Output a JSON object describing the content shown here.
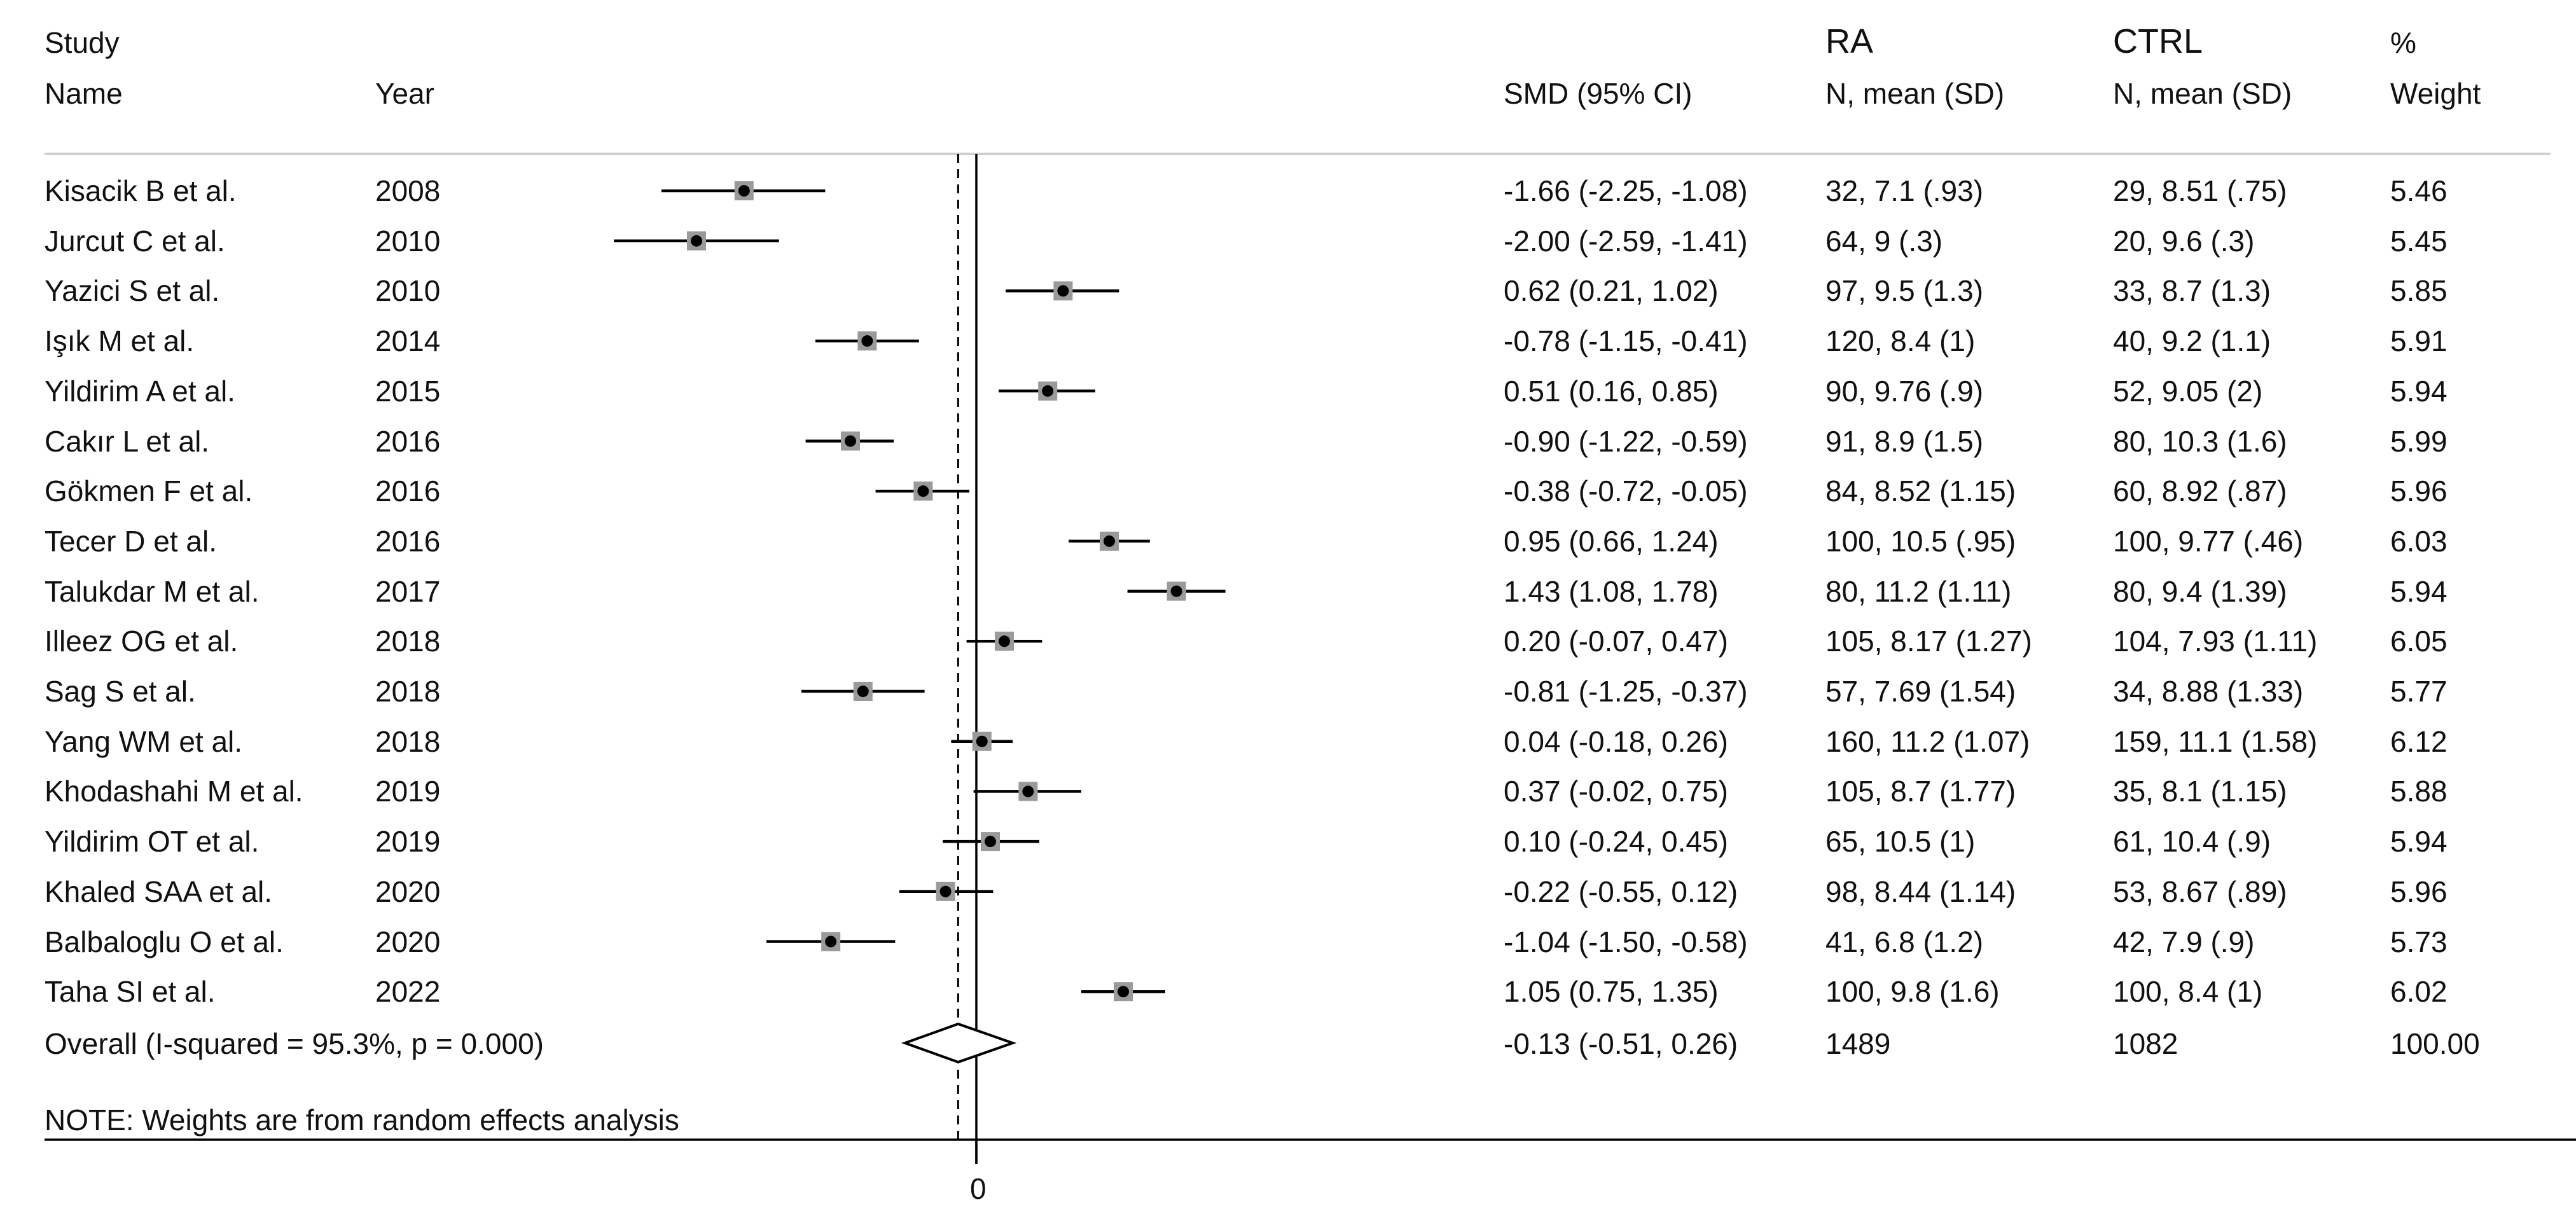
{
  "chart_data": {
    "type": "forest",
    "headers": {
      "study_line1": "Study",
      "study_line2": "Name",
      "year": "Year",
      "smd": "SMD (95% CI)",
      "ra_line1": "RA",
      "ra_line2": "N, mean (SD)",
      "ctrl_line1": "CTRL",
      "ctrl_line2": "N, mean (SD)",
      "weight_line1": "%",
      "weight_line2": "Weight"
    },
    "rows": [
      {
        "study": "Kisacik B et al.",
        "year": "2008",
        "smd": -1.66,
        "lo": -2.25,
        "hi": -1.08,
        "smd_text": "-1.66 (-2.25, -1.08)",
        "ra": "32, 7.1 (.93)",
        "ctrl": "29, 8.51 (.75)",
        "weight": "5.46"
      },
      {
        "study": "Jurcut C et al.",
        "year": "2010",
        "smd": -2.0,
        "lo": -2.59,
        "hi": -1.41,
        "smd_text": "-2.00 (-2.59, -1.41)",
        "ra": "64, 9 (.3)",
        "ctrl": "20, 9.6 (.3)",
        "weight": "5.45"
      },
      {
        "study": "Yazici S et al.",
        "year": "2010",
        "smd": 0.62,
        "lo": 0.21,
        "hi": 1.02,
        "smd_text": "0.62 (0.21, 1.02)",
        "ra": "97, 9.5 (1.3)",
        "ctrl": "33, 8.7 (1.3)",
        "weight": "5.85"
      },
      {
        "study": "Işık M et al.",
        "year": "2014",
        "smd": -0.78,
        "lo": -1.15,
        "hi": -0.41,
        "smd_text": "-0.78 (-1.15, -0.41)",
        "ra": "120, 8.4 (1)",
        "ctrl": "40, 9.2 (1.1)",
        "weight": "5.91"
      },
      {
        "study": "Yildirim A et al.",
        "year": "2015",
        "smd": 0.51,
        "lo": 0.16,
        "hi": 0.85,
        "smd_text": "0.51 (0.16, 0.85)",
        "ra": "90, 9.76 (.9)",
        "ctrl": "52, 9.05 (2)",
        "weight": "5.94"
      },
      {
        "study": "Cakır L et al.",
        "year": "2016",
        "smd": -0.9,
        "lo": -1.22,
        "hi": -0.59,
        "smd_text": "-0.90 (-1.22, -0.59)",
        "ra": "91, 8.9 (1.5)",
        "ctrl": "80, 10.3 (1.6)",
        "weight": "5.99"
      },
      {
        "study": "Gökmen F et al.",
        "year": "2016",
        "smd": -0.38,
        "lo": -0.72,
        "hi": -0.05,
        "smd_text": "-0.38 (-0.72, -0.05)",
        "ra": "84, 8.52 (1.15)",
        "ctrl": "60, 8.92 (.87)",
        "weight": "5.96"
      },
      {
        "study": "Tecer D et al.",
        "year": "2016",
        "smd": 0.95,
        "lo": 0.66,
        "hi": 1.24,
        "smd_text": "0.95 (0.66, 1.24)",
        "ra": "100, 10.5 (.95)",
        "ctrl": "100, 9.77 (.46)",
        "weight": "6.03"
      },
      {
        "study": "Talukdar M et al.",
        "year": "2017",
        "smd": 1.43,
        "lo": 1.08,
        "hi": 1.78,
        "smd_text": "1.43 (1.08, 1.78)",
        "ra": "80, 11.2 (1.11)",
        "ctrl": "80, 9.4 (1.39)",
        "weight": "5.94"
      },
      {
        "study": "Illeez OG et al.",
        "year": "2018",
        "smd": 0.2,
        "lo": -0.07,
        "hi": 0.47,
        "smd_text": "0.20 (-0.07, 0.47)",
        "ra": "105, 8.17 (1.27)",
        "ctrl": "104, 7.93 (1.11)",
        "weight": "6.05"
      },
      {
        "study": "Sag S et al.",
        "year": "2018",
        "smd": -0.81,
        "lo": -1.25,
        "hi": -0.37,
        "smd_text": "-0.81 (-1.25, -0.37)",
        "ra": "57, 7.69 (1.54)",
        "ctrl": "34, 8.88 (1.33)",
        "weight": "5.77"
      },
      {
        "study": "Yang WM et al.",
        "year": "2018",
        "smd": 0.04,
        "lo": -0.18,
        "hi": 0.26,
        "smd_text": "0.04 (-0.18, 0.26)",
        "ra": "160, 11.2 (1.07)",
        "ctrl": "159, 11.1 (1.58)",
        "weight": "6.12"
      },
      {
        "study": "Khodashahi M et al.",
        "year": "2019",
        "smd": 0.37,
        "lo": -0.02,
        "hi": 0.75,
        "smd_text": "0.37 (-0.02, 0.75)",
        "ra": "105, 8.7 (1.77)",
        "ctrl": "35, 8.1 (1.15)",
        "weight": "5.88"
      },
      {
        "study": "Yildirim OT et al.",
        "year": "2019",
        "smd": 0.1,
        "lo": -0.24,
        "hi": 0.45,
        "smd_text": "0.10 (-0.24, 0.45)",
        "ra": "65, 10.5 (1)",
        "ctrl": "61, 10.4 (.9)",
        "weight": "5.94"
      },
      {
        "study": "Khaled SAA et al.",
        "year": "2020",
        "smd": -0.22,
        "lo": -0.55,
        "hi": 0.12,
        "smd_text": "-0.22 (-0.55, 0.12)",
        "ra": "98, 8.44 (1.14)",
        "ctrl": "53, 8.67 (.89)",
        "weight": "5.96"
      },
      {
        "study": "Balbaloglu O et al.",
        "year": "2020",
        "smd": -1.04,
        "lo": -1.5,
        "hi": -0.58,
        "smd_text": "-1.04 (-1.50, -0.58)",
        "ra": "41, 6.8 (1.2)",
        "ctrl": "42, 7.9 (.9)",
        "weight": "5.73"
      },
      {
        "study": "Taha SI et al.",
        "year": "2022",
        "smd": 1.05,
        "lo": 0.75,
        "hi": 1.35,
        "smd_text": "1.05 (0.75, 1.35)",
        "ra": "100, 9.8 (1.6)",
        "ctrl": "100, 8.4 (1)",
        "weight": "6.02"
      }
    ],
    "overall": {
      "label": "Overall  (I-squared = 95.3%, p = 0.000)",
      "smd": -0.13,
      "lo": -0.51,
      "hi": 0.26,
      "smd_text": "-0.13 (-0.51, 0.26)",
      "ra": "1489",
      "ctrl": "1082",
      "weight": "100.00"
    },
    "note": "NOTE: Weights are from random effects analysis",
    "x_axis": {
      "zero_label": "0",
      "range": [
        -2.85,
        2.3
      ]
    },
    "null_line": 0,
    "overall_line": -0.13
  }
}
